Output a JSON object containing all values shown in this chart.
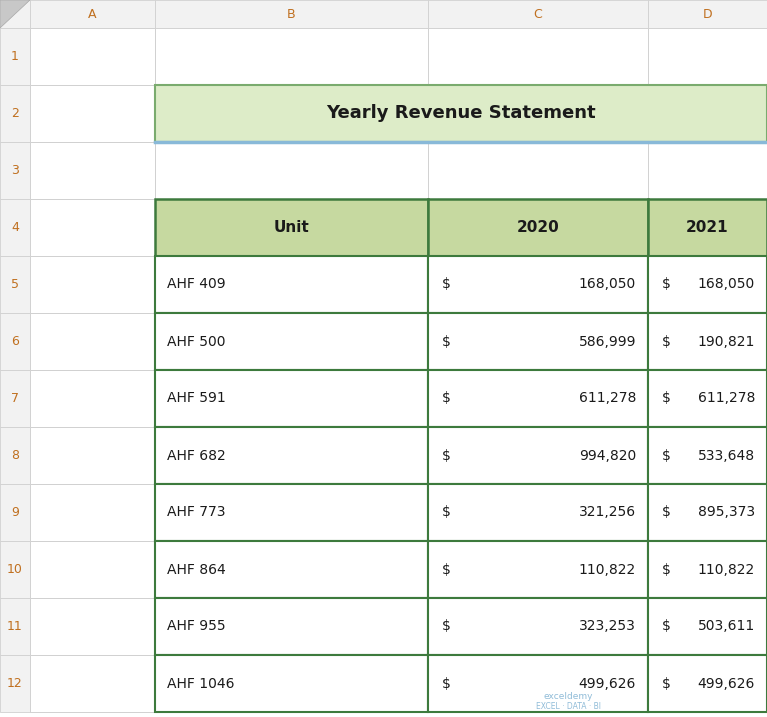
{
  "title": "Yearly Revenue Statement",
  "title_bg": "#ddecc8",
  "title_border": "#7aab6e",
  "title_underline": "#89b9d8",
  "header_bg": "#c6d9a0",
  "header_border": "#3d7a3d",
  "cell_border": "#3d7a3d",
  "col_headers": [
    "Unit",
    "2020",
    "2021"
  ],
  "rows": [
    [
      "AHF 409",
      "168,050",
      "168,050"
    ],
    [
      "AHF 500",
      "586,999",
      "190,821"
    ],
    [
      "AHF 591",
      "611,278",
      "611,278"
    ],
    [
      "AHF 682",
      "994,820",
      "533,648"
    ],
    [
      "AHF 773",
      "321,256",
      "895,373"
    ],
    [
      "AHF 864",
      "110,822",
      "110,822"
    ],
    [
      "AHF 955",
      "323,253",
      "503,611"
    ],
    [
      "AHF 1046",
      "499,626",
      "499,626"
    ]
  ],
  "bg_color": "#ffffff",
  "grid_line_color": "#c8c8c8",
  "excel_header_bg": "#f2f2f2",
  "excel_header_border": "#d0d0d0",
  "excel_row_labels": [
    "1",
    "2",
    "3",
    "4",
    "5",
    "6",
    "7",
    "8",
    "9",
    "10",
    "11",
    "12"
  ],
  "excel_col_labels": [
    "A",
    "B",
    "C",
    "D"
  ],
  "font_size_title": 13,
  "font_size_header": 11,
  "font_size_cell": 10,
  "font_size_excel": 9,
  "watermark_line1": "exceldemy",
  "watermark_line2": "EXCEL · DATA · BI"
}
